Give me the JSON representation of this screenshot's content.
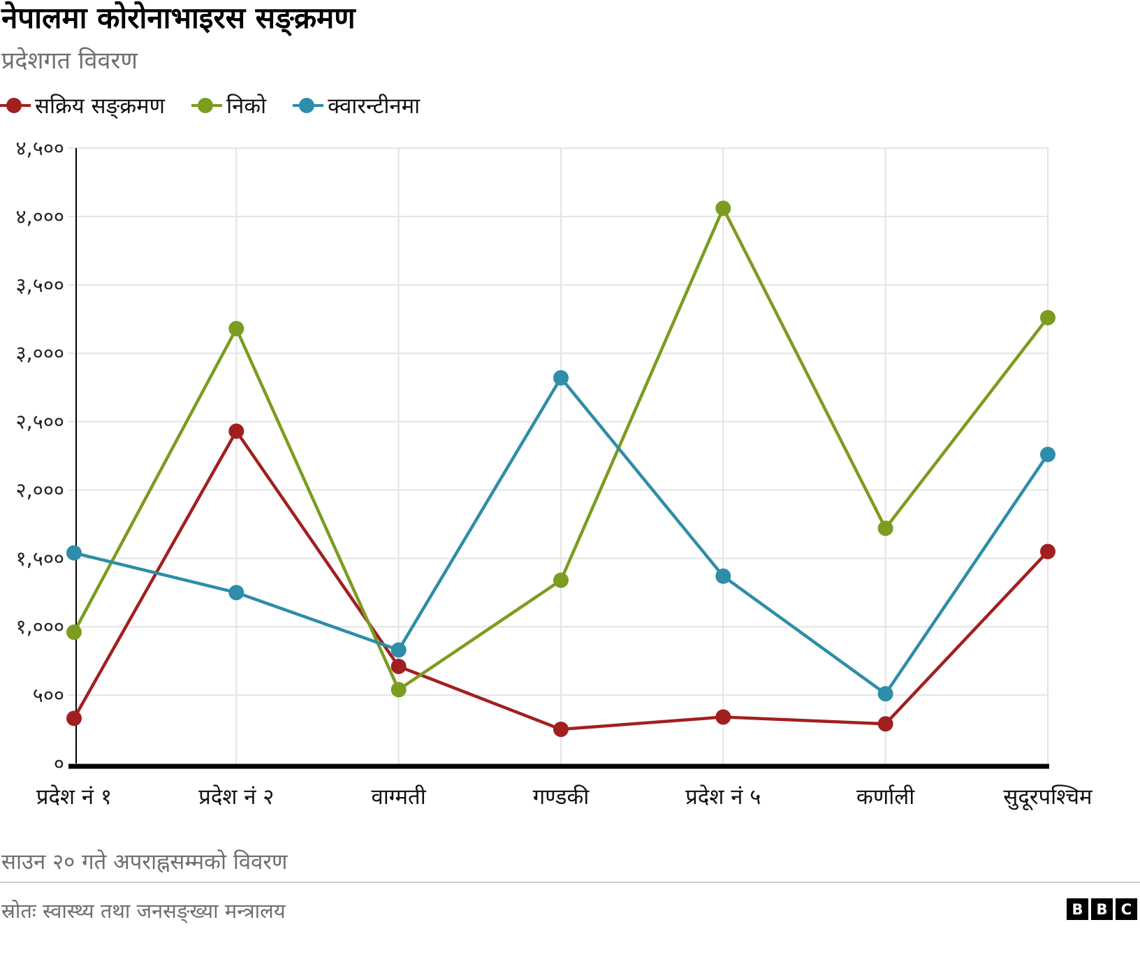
{
  "header": {
    "title": "नेपालमा कोरोनाभाइरस सङ्क्रमण",
    "subtitle": "प्रदेशगत विवरण"
  },
  "legend": [
    {
      "label": "सक्रिय सङ्क्रमण",
      "color": "#a1201f"
    },
    {
      "label": "निको",
      "color": "#7b9c1f"
    },
    {
      "label": "क्वारन्टीनमा",
      "color": "#2e8da8"
    }
  ],
  "chart_data": {
    "type": "line",
    "title": "नेपालमा कोरोनाभाइरस सङ्क्रमण",
    "subtitle": "प्रदेशगत विवरण",
    "categories": [
      "प्रदेश नं १",
      "प्रदेश नं २",
      "वाग्मती",
      "गण्डकी",
      "प्रदेश नं ५",
      "कर्णाली",
      "सुदूरपश्चिम"
    ],
    "series": [
      {
        "name": "सक्रिय सङ्क्रमण",
        "color": "#a1201f",
        "values": [
          330,
          2430,
          710,
          250,
          340,
          290,
          1550
        ]
      },
      {
        "name": "निको",
        "color": "#7b9c1f",
        "values": [
          960,
          3180,
          540,
          1340,
          4060,
          1720,
          3260
        ]
      },
      {
        "name": "क्वारन्टीनमा",
        "color": "#2e8da8",
        "values": [
          1540,
          1250,
          830,
          2820,
          1370,
          510,
          2260
        ]
      }
    ],
    "ylim": [
      0,
      4500
    ],
    "ytick_step": 500,
    "ytick_labels": [
      "०",
      "५००",
      "१,०००",
      "१,५००",
      "२,०००",
      "२,५००",
      "३,०००",
      "३,५००",
      "४,०००",
      "४,५००"
    ],
    "grid": true,
    "legend_position": "top",
    "colors": {
      "gridline": "#e4e4e4",
      "axis": "#000000",
      "ytick_text": "#222222",
      "xtick_text": "#111111"
    }
  },
  "footer": {
    "note": "साउन २० गते अपराह्नसम्मको विवरण",
    "source": "स्रोतः स्वास्थ्य तथा जनसङ्ख्या मन्त्रालय",
    "logo_letters": [
      "B",
      "B",
      "C"
    ]
  }
}
